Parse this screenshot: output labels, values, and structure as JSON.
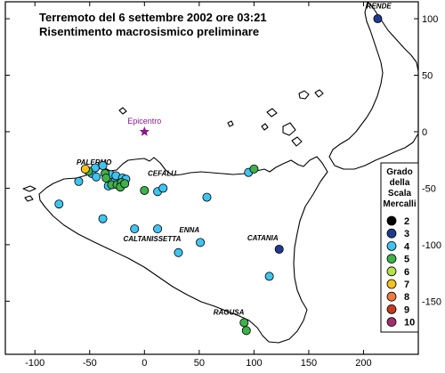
{
  "title": {
    "line1": "Terremoto del 6 settembre 2002 ore 03:21",
    "line2": "Risentimento macrosismico preliminare"
  },
  "axes": {
    "x_ticks": [
      "-100",
      "-50",
      "0",
      "50",
      "100",
      "150",
      "200"
    ],
    "y_ticks": [
      "100",
      "50",
      "0",
      "-50",
      "-100",
      "-150"
    ],
    "xlim": [
      -127,
      250
    ],
    "ylim": [
      -197,
      115
    ]
  },
  "epicentre": {
    "label": "Epicentro",
    "x": 0,
    "y": 0,
    "color": "#8a1a8a"
  },
  "places": [
    {
      "name": "RENDE",
      "x": 214,
      "y": 109
    },
    {
      "name": "PALERMO",
      "x": -46,
      "y": -29
    },
    {
      "name": "CEFALU",
      "x": 16,
      "y": -39
    },
    {
      "name": "ENNA",
      "x": 41,
      "y": -89
    },
    {
      "name": "CALTANISSETTA",
      "x": 7,
      "y": -97
    },
    {
      "name": "CATANIA",
      "x": 108,
      "y": -96
    },
    {
      "name": "RAGUSA",
      "x": 77,
      "y": -162
    }
  ],
  "legend": {
    "title_lines": [
      "Grado",
      "della",
      "Scala",
      "Mercalli"
    ],
    "items": [
      {
        "value": "2",
        "color": "#000000"
      },
      {
        "value": "3",
        "color": "#1f3a8f"
      },
      {
        "value": "4",
        "color": "#3ec4f0"
      },
      {
        "value": "5",
        "color": "#3fb04a"
      },
      {
        "value": "6",
        "color": "#b8e04a"
      },
      {
        "value": "7",
        "color": "#f6c21a"
      },
      {
        "value": "8",
        "color": "#f07a3c"
      },
      {
        "value": "9",
        "color": "#c83a1e"
      },
      {
        "value": "10",
        "color": "#a0306a"
      }
    ]
  },
  "observations": [
    {
      "x": 213,
      "y": 100,
      "grade": 3
    },
    {
      "x": 123,
      "y": -104,
      "grade": 3
    },
    {
      "x": -78,
      "y": -64,
      "grade": 4
    },
    {
      "x": -60,
      "y": -44,
      "grade": 4
    },
    {
      "x": -48,
      "y": -37,
      "grade": 4
    },
    {
      "x": -45,
      "y": -32,
      "grade": 4
    },
    {
      "x": -44,
      "y": -40,
      "grade": 4
    },
    {
      "x": -38,
      "y": -30,
      "grade": 4
    },
    {
      "x": -33,
      "y": -48,
      "grade": 4
    },
    {
      "x": -31,
      "y": -38,
      "grade": 4
    },
    {
      "x": -27,
      "y": -44,
      "grade": 4
    },
    {
      "x": -26,
      "y": -39,
      "grade": 4
    },
    {
      "x": -20,
      "y": -41,
      "grade": 4
    },
    {
      "x": -17,
      "y": -42,
      "grade": 4
    },
    {
      "x": 12,
      "y": -53,
      "grade": 4
    },
    {
      "x": 17,
      "y": -50,
      "grade": 4
    },
    {
      "x": 57,
      "y": -58,
      "grade": 4
    },
    {
      "x": 95,
      "y": -36,
      "grade": 4
    },
    {
      "x": -38,
      "y": -77,
      "grade": 4
    },
    {
      "x": -9,
      "y": -86,
      "grade": 4
    },
    {
      "x": 12,
      "y": -86,
      "grade": 4
    },
    {
      "x": 31,
      "y": -107,
      "grade": 4
    },
    {
      "x": 51,
      "y": -98,
      "grade": 4
    },
    {
      "x": 114,
      "y": -128,
      "grade": 4
    },
    {
      "x": -51,
      "y": -35,
      "grade": 5
    },
    {
      "x": -36,
      "y": -37,
      "grade": 5
    },
    {
      "x": -35,
      "y": -41,
      "grade": 5
    },
    {
      "x": -30,
      "y": -47,
      "grade": 5
    },
    {
      "x": -25,
      "y": -47,
      "grade": 5
    },
    {
      "x": -21,
      "y": -45,
      "grade": 5
    },
    {
      "x": -22,
      "y": -49,
      "grade": 5
    },
    {
      "x": -18,
      "y": -46,
      "grade": 5
    },
    {
      "x": 0,
      "y": -52,
      "grade": 5
    },
    {
      "x": 100,
      "y": -33,
      "grade": 5
    },
    {
      "x": 91,
      "y": -169,
      "grade": 5
    },
    {
      "x": 93,
      "y": -176,
      "grade": 5
    },
    {
      "x": -54,
      "y": -33,
      "grade": 7
    }
  ]
}
